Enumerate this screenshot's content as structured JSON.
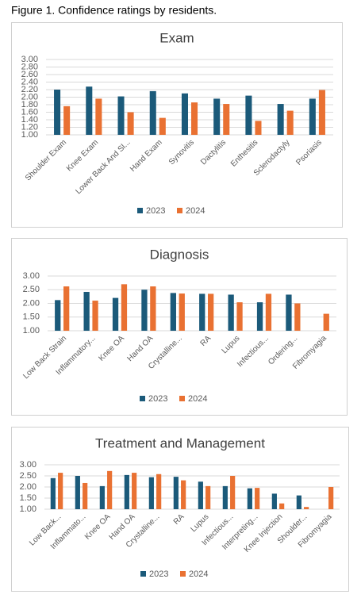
{
  "figure_title": "Figure 1. Confidence ratings by residents.",
  "chart_data": [
    {
      "type": "bar",
      "title": "Exam",
      "categories": [
        "Shoulder Exam",
        "Knee Exam",
        "Lower Back And Sl...",
        "Hand Exam",
        "Synovitis",
        "Dactylitis",
        "Enthesitis",
        "Sclerodactyly",
        "Psoriasis"
      ],
      "series": [
        {
          "name": "2023",
          "color": "#1b5a7a",
          "values": [
            2.2,
            2.28,
            2.02,
            2.16,
            2.1,
            1.96,
            2.04,
            1.82,
            1.96
          ]
        },
        {
          "name": "2024",
          "color": "#e97132",
          "values": [
            1.76,
            1.96,
            1.6,
            1.45,
            1.86,
            1.82,
            1.37,
            1.64,
            2.19
          ]
        }
      ],
      "ylim": [
        1,
        3
      ],
      "yticks": [
        {
          "value": 1,
          "label": "1.00"
        },
        {
          "value": 1.2,
          "label": "1.20"
        },
        {
          "value": 1.4,
          "label": "1.40"
        },
        {
          "value": 1.6,
          "label": "1.60"
        },
        {
          "value": 1.8,
          "label": "1.80"
        },
        {
          "value": 2,
          "label": "2.00"
        },
        {
          "value": 2.2,
          "label": "2.20"
        },
        {
          "value": 2.4,
          "label": "2.40"
        },
        {
          "value": 2.6,
          "label": "2.60"
        },
        {
          "value": 2.8,
          "label": "2.80"
        },
        {
          "value": 3,
          "label": "3.00"
        }
      ],
      "grid": true,
      "legend": "bottom"
    },
    {
      "type": "bar",
      "title": "Diagnosis",
      "categories": [
        "Low Back Strain",
        "Inflammatory...",
        "Knee OA",
        "Hand OA",
        "Crystalline...",
        "RA",
        "Lupus",
        "Infectious...",
        "Ordering...",
        "Fibromyagia"
      ],
      "series": [
        {
          "name": "2023",
          "color": "#1b5a7a",
          "values": [
            2.12,
            2.42,
            2.2,
            2.5,
            2.38,
            2.35,
            2.32,
            2.04,
            2.32,
            null
          ]
        },
        {
          "name": "2024",
          "color": "#e97132",
          "values": [
            2.62,
            2.1,
            2.7,
            2.62,
            2.36,
            2.35,
            2.04,
            2.35,
            2.0,
            1.62
          ]
        }
      ],
      "ylim": [
        1,
        3
      ],
      "yticks": [
        {
          "value": 1,
          "label": "1.00"
        },
        {
          "value": 1.5,
          "label": "1.50"
        },
        {
          "value": 2,
          "label": "2.00"
        },
        {
          "value": 2.5,
          "label": "2.50"
        },
        {
          "value": 3,
          "label": "3.00"
        }
      ],
      "grid": true,
      "legend": "bottom"
    },
    {
      "type": "bar",
      "title": "Treatment and Management",
      "categories": [
        "Low Back...",
        "Inflammato...",
        "Knee OA",
        "Hand OA",
        "Crystalline...",
        "RA",
        "Lupus",
        "Infectious...",
        "Interpreting...",
        "Knee Injection",
        "Shoulder...",
        "Fibromyagia"
      ],
      "series": [
        {
          "name": "2023",
          "color": "#1b5a7a",
          "values": [
            2.4,
            2.5,
            2.04,
            2.54,
            2.44,
            2.46,
            2.24,
            2.04,
            1.94,
            1.7,
            1.62,
            null
          ]
        },
        {
          "name": "2024",
          "color": "#e97132",
          "values": [
            2.64,
            2.18,
            2.72,
            2.64,
            2.58,
            2.3,
            2.04,
            2.5,
            1.96,
            1.26,
            1.1,
            2.0
          ]
        }
      ],
      "ylim": [
        1,
        3
      ],
      "yticks": [
        {
          "value": 1,
          "label": "1.00"
        },
        {
          "value": 1.5,
          "label": "1.50"
        },
        {
          "value": 2,
          "label": "2.00"
        },
        {
          "value": 2.5,
          "label": "2.50"
        },
        {
          "value": 3,
          "label": "3.00"
        }
      ],
      "grid": true,
      "legend": "bottom"
    }
  ]
}
